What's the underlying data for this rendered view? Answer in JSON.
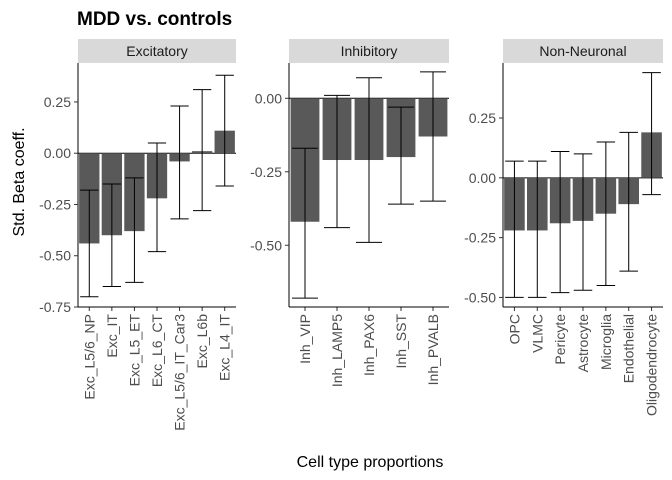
{
  "chart_data": {
    "type": "bar",
    "title": "MDD vs. controls",
    "xlabel": "Cell type proportions",
    "ylabel": "Std. Beta coeff.",
    "bar_color": "#595959",
    "strip_color": "#d9d9d9",
    "grid": false,
    "panels": [
      {
        "name": "Excitatory",
        "ylim": [
          -0.75,
          0.44
        ],
        "yticks": [
          0.25,
          0.0,
          -0.25,
          -0.5,
          -0.75
        ],
        "ytick_labels": [
          "0.25",
          "0.00",
          "-0.25",
          "-0.50",
          "-0.75"
        ],
        "categories": [
          "Exc_L5/6_NP",
          "Exc_IT",
          "Exc_L5_ET",
          "Exc_L6_CT",
          "Exc_L5/6_IT_Car3",
          "Exc_L6b",
          "Exc_L4_IT"
        ],
        "values": [
          -0.44,
          -0.4,
          -0.38,
          -0.22,
          -0.04,
          0.01,
          0.11
        ],
        "ci_low": [
          -0.7,
          -0.65,
          -0.63,
          -0.48,
          -0.32,
          -0.28,
          -0.16
        ],
        "ci_high": [
          -0.18,
          -0.15,
          -0.12,
          0.05,
          0.23,
          0.31,
          0.38
        ]
      },
      {
        "name": "Inhibitory",
        "ylim": [
          -0.71,
          0.12
        ],
        "yticks": [
          0.0,
          -0.25,
          -0.5
        ],
        "ytick_labels": [
          "0.00",
          "-0.25",
          "-0.50"
        ],
        "categories": [
          "Inh_VIP",
          "Inh_LAMP5",
          "Inh_PAX6",
          "Inh_SST",
          "Inh_PVALB"
        ],
        "values": [
          -0.42,
          -0.21,
          -0.21,
          -0.2,
          -0.13
        ],
        "ci_low": [
          -0.68,
          -0.44,
          -0.49,
          -0.36,
          -0.35
        ],
        "ci_high": [
          -0.17,
          0.01,
          0.07,
          -0.03,
          0.09
        ]
      },
      {
        "name": "Non-Neuronal",
        "ylim": [
          -0.54,
          0.48
        ],
        "yticks": [
          0.25,
          0.0,
          -0.25,
          -0.5
        ],
        "ytick_labels": [
          "0.25",
          "0.00",
          "-0.25",
          "-0.50"
        ],
        "categories": [
          "OPC",
          "VLMC",
          "Pericyte",
          "Astrocyte",
          "Microglia",
          "Endothelial",
          "Oligodendrocyte"
        ],
        "values": [
          -0.22,
          -0.22,
          -0.19,
          -0.18,
          -0.15,
          -0.11,
          0.19
        ],
        "ci_low": [
          -0.5,
          -0.5,
          -0.48,
          -0.47,
          -0.45,
          -0.39,
          -0.07
        ],
        "ci_high": [
          0.07,
          0.07,
          0.11,
          0.1,
          0.15,
          0.19,
          0.44
        ]
      }
    ]
  }
}
